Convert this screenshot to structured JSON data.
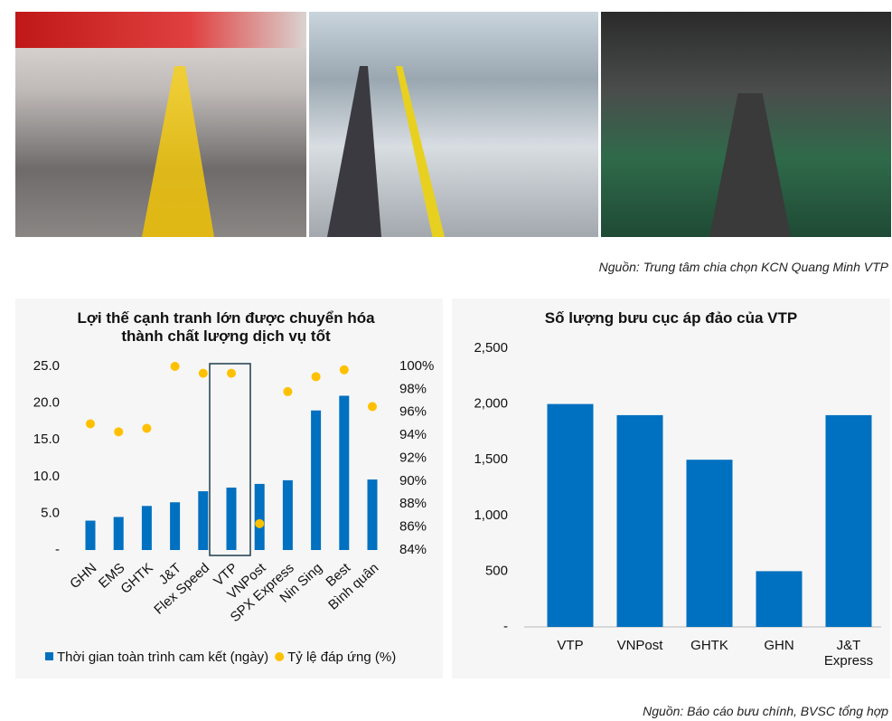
{
  "photos_caption": "Nguồn: Trung tâm chia chọn KCN Quang Minh VTP",
  "chart_data": [
    {
      "type": "combo",
      "title": "Lợi thế cạnh tranh lớn được chuyển hóa\nthành chất lượng dịch vụ tốt",
      "categories": [
        "GHN",
        "EMS",
        "GHTK",
        "J&T",
        "Flex Speed",
        "VTP",
        "VNPost",
        "SPX Express",
        "Nin Sing",
        "Best",
        "Bình quân"
      ],
      "series": [
        {
          "name": "Thời gian toàn trình cam kết (ngày)",
          "type": "bar",
          "color": "#0070c0",
          "values": [
            4,
            4.5,
            6,
            6.5,
            8,
            8.5,
            9,
            9.5,
            19,
            21,
            9.6
          ]
        },
        {
          "name": "Tỷ lệ đáp ứng (%)",
          "type": "scatter",
          "axis": "y2",
          "color": "#ffc000",
          "values": [
            95.0,
            94.3,
            94.6,
            100,
            99.4,
            99.4,
            86.3,
            97.8,
            99.1,
            99.7,
            96.5
          ]
        }
      ],
      "ylim": [
        0,
        25
      ],
      "yticks": [
        {
          "value": 0,
          "label": "-"
        },
        {
          "value": 5,
          "label": "5.0"
        },
        {
          "value": 10,
          "label": "10.0"
        },
        {
          "value": 15,
          "label": "15.0"
        },
        {
          "value": 20,
          "label": "20.0"
        },
        {
          "value": 25,
          "label": "25.0"
        }
      ],
      "y2lim": [
        84,
        100
      ],
      "y2ticks": [
        {
          "value": 84,
          "label": "84%"
        },
        {
          "value": 86,
          "label": "86%"
        },
        {
          "value": 88,
          "label": "88%"
        },
        {
          "value": 90,
          "label": "90%"
        },
        {
          "value": 92,
          "label": "92%"
        },
        {
          "value": 94,
          "label": "94%"
        },
        {
          "value": 96,
          "label": "96%"
        },
        {
          "value": 98,
          "label": "98%"
        },
        {
          "value": 100,
          "label": "100%"
        }
      ],
      "legend": "bottom"
    },
    {
      "type": "bar",
      "title": "Số lượng bưu cục áp đảo của VTP",
      "categories": [
        "VTP",
        "VNPost",
        "GHTK",
        "GHN",
        "J&T\nExpress"
      ],
      "values": [
        2000,
        1900,
        1500,
        500,
        1900
      ],
      "color": "#0070c0",
      "ylim": [
        0,
        2500
      ],
      "yticks": [
        {
          "value": 0,
          "label": "-"
        },
        500,
        {
          "value": 1000,
          "label": "1,000"
        },
        {
          "value": 1500,
          "label": "1,500"
        },
        {
          "value": 2000,
          "label": "2,000"
        },
        {
          "value": 2500,
          "label": "2,500"
        }
      ]
    }
  ],
  "footer": "Nguồn: Báo cáo bưu chính, BVSC tổng hợp"
}
